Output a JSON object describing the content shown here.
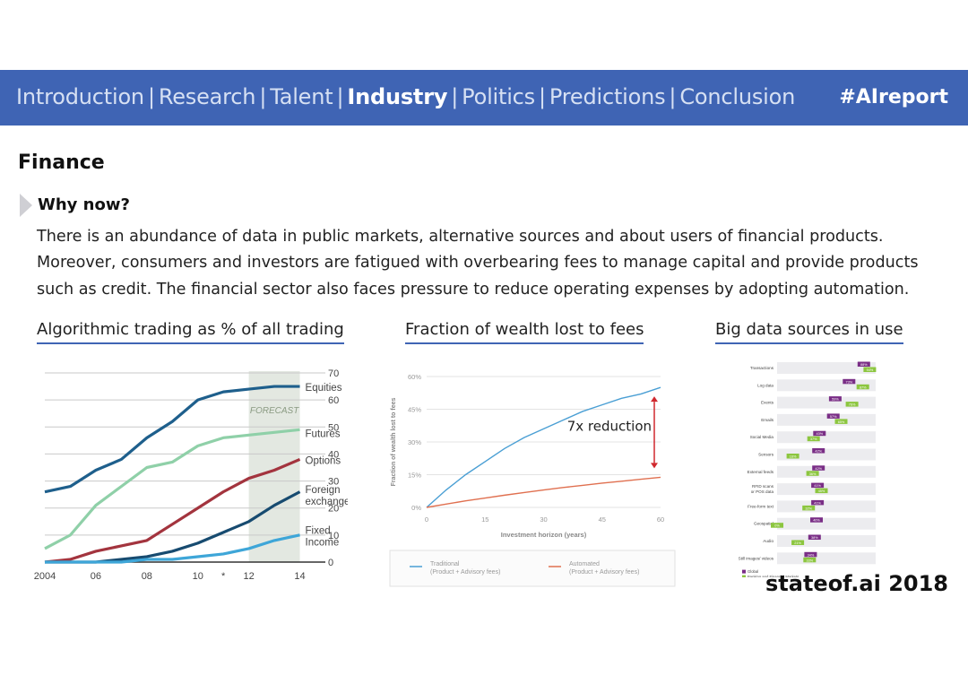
{
  "nav": {
    "items": [
      "Introduction",
      "Research",
      "Talent",
      "Industry",
      "Politics",
      "Predictions",
      "Conclusion"
    ],
    "active": "Industry",
    "hashtag": "#AIreport"
  },
  "page": {
    "title": "Finance",
    "why_title": "Why now?",
    "body": "There is an abundance of data in public markets, alternative sources and about users of financial products. Moreover, consumers and investors are fatigued with overbearing fees to manage capital and provide products such as credit. The financial sector also faces pressure to reduce operating expenses by adopting automation."
  },
  "panels": {
    "algo_title": "Algorithmic trading as % of all trading",
    "fees_title": "Fraction of wealth lost to fees",
    "bigdata_title": "Big data sources in use"
  },
  "footer": {
    "brand": "stateof.ai 2018"
  },
  "colors": {
    "nav_bg": "#3f64b4",
    "accent": "#3f64b4"
  },
  "chart_data": [
    {
      "type": "line",
      "x": [
        2004,
        2005,
        2006,
        2007,
        2008,
        2009,
        2010,
        2011,
        2012,
        2013,
        2014
      ],
      "x_ticks": [
        "2004",
        "06",
        "08",
        "10",
        "*",
        "12",
        "14"
      ],
      "y_ticks": [
        "0",
        "10",
        "20",
        "30",
        "40",
        "50",
        "60",
        "70"
      ],
      "ylim": [
        0,
        70
      ],
      "annotation": "FORECAST",
      "series": [
        {
          "name": "Equities",
          "color": "#1e5f8c",
          "values": [
            26,
            28,
            34,
            38,
            46,
            52,
            60,
            63,
            64,
            65,
            65
          ]
        },
        {
          "name": "Futures",
          "color": "#8fd0a8",
          "values": [
            5,
            10,
            21,
            28,
            35,
            37,
            43,
            46,
            47,
            48,
            49
          ]
        },
        {
          "name": "Options",
          "color": "#a3343e",
          "values": [
            0,
            1,
            4,
            6,
            8,
            14,
            20,
            26,
            31,
            34,
            38
          ]
        },
        {
          "name": "Foreign exchange",
          "color": "#174b70",
          "values": [
            0,
            0,
            0,
            1,
            2,
            4,
            7,
            11,
            15,
            21,
            26
          ]
        },
        {
          "name": "Fixed Income",
          "color": "#3ea6d8",
          "values": [
            0,
            0,
            0,
            0,
            1,
            1,
            2,
            3,
            5,
            8,
            10
          ]
        }
      ]
    },
    {
      "type": "line",
      "x": [
        0,
        5,
        10,
        15,
        20,
        25,
        30,
        35,
        40,
        45,
        50,
        55,
        60
      ],
      "xlabel": "Investment horizon (years)",
      "ylabel": "Fraction of wealth lost to fees",
      "x_ticks": [
        "0",
        "15",
        "30",
        "45",
        "60"
      ],
      "y_ticks": [
        "0%",
        "15%",
        "30%",
        "45%",
        "60%"
      ],
      "ylim": [
        0,
        60
      ],
      "annotation": "7x reduction",
      "series": [
        {
          "name": "Traditional (Product + Advisory fees)",
          "color": "#4a9fd4",
          "values": [
            0,
            8,
            15,
            21,
            27,
            32,
            36,
            40,
            44,
            47,
            50,
            52,
            55
          ]
        },
        {
          "name": "Automated (Product + Advisory fees)",
          "color": "#e07050",
          "values": [
            0,
            1.5,
            3,
            4.3,
            5.6,
            6.8,
            8,
            9.1,
            10.1,
            11.1,
            12,
            12.9,
            13.8
          ]
        }
      ]
    },
    {
      "type": "bar",
      "categories": [
        "Transactions",
        "Log data",
        "Events",
        "Emails",
        "Social Media",
        "Sensors",
        "External feeds",
        "RFID scans or POS data",
        "Free-form text",
        "Geospatial",
        "Audio",
        "Still images/ videos"
      ],
      "series": [
        {
          "name": "Global",
          "color": "#7a2e86",
          "values": [
            88,
            73,
            59,
            57,
            43,
            42,
            42,
            41,
            41,
            40,
            38,
            34
          ]
        },
        {
          "name": "Banking and Financial Markets",
          "color": "#8cc63f",
          "values": [
            94,
            87,
            76,
            65,
            37,
            16,
            36,
            45,
            32,
            0,
            21,
            33
          ]
        }
      ],
      "legend": "bottom-left"
    }
  ]
}
